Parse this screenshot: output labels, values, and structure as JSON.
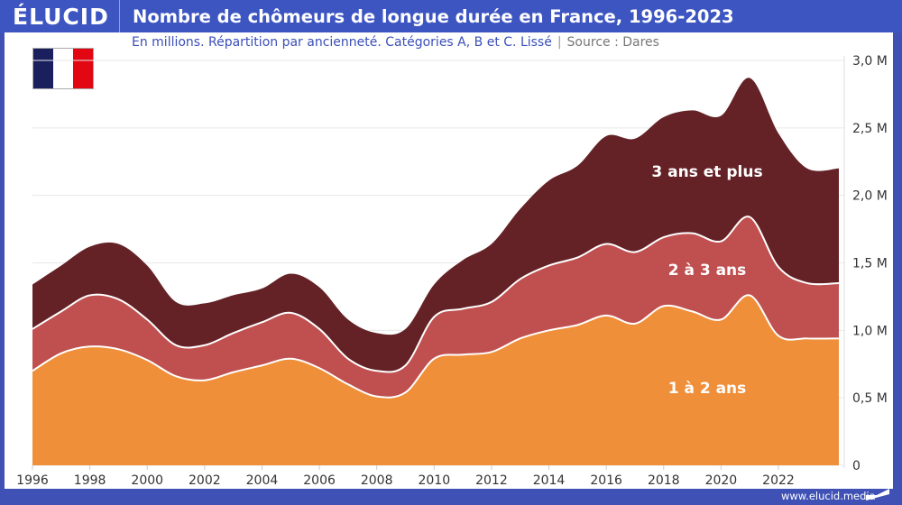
{
  "header": {
    "logo": "ÉLUCID",
    "title": "Nombre de chômeurs de longue durée en France, 1996-2023",
    "subtitle": "En millions. Répartition par ancienneté. Catégories A, B et C. Lissé",
    "separator": "|",
    "source": "Source : Dares"
  },
  "flag": {
    "name": "France",
    "colors": [
      "#1a1f5e",
      "#ffffff",
      "#e30613"
    ]
  },
  "footer": {
    "url": "www.elucid.media"
  },
  "colors": {
    "brand": "#3d55c1",
    "layer_1_2": "#ef8f3a",
    "layer_2_3": "#c05050",
    "layer_3_plus": "#642226"
  },
  "chart_data": {
    "type": "area",
    "stacked": true,
    "smoothed": true,
    "title": "Nombre de chômeurs de longue durée en France, 1996-2023",
    "subtitle": "En millions. Répartition par ancienneté. Catégories A, B et C. Lissé",
    "source": "Dares",
    "xlabel": "",
    "ylabel": "",
    "x": [
      1996,
      1997,
      1998,
      1999,
      2000,
      2001,
      2002,
      2003,
      2004,
      2005,
      2006,
      2007,
      2008,
      2009,
      2010,
      2011,
      2012,
      2013,
      2014,
      2015,
      2016,
      2017,
      2018,
      2019,
      2020,
      2021,
      2022,
      2023
    ],
    "series": [
      {
        "name": "1 à 2 ans",
        "values": [
          0.7,
          0.83,
          0.88,
          0.86,
          0.78,
          0.66,
          0.63,
          0.69,
          0.74,
          0.79,
          0.72,
          0.6,
          0.51,
          0.54,
          0.79,
          0.82,
          0.84,
          0.94,
          1.0,
          1.04,
          1.11,
          1.05,
          1.18,
          1.14,
          1.08,
          1.26,
          0.96,
          0.94
        ]
      },
      {
        "name": "2 à 3 ans",
        "values": [
          0.31,
          0.31,
          0.38,
          0.37,
          0.3,
          0.23,
          0.26,
          0.29,
          0.32,
          0.34,
          0.29,
          0.19,
          0.19,
          0.2,
          0.31,
          0.34,
          0.37,
          0.44,
          0.48,
          0.5,
          0.53,
          0.53,
          0.51,
          0.58,
          0.58,
          0.58,
          0.51,
          0.41
        ]
      },
      {
        "name": "3 ans et plus",
        "values": [
          0.33,
          0.34,
          0.36,
          0.41,
          0.4,
          0.32,
          0.31,
          0.28,
          0.25,
          0.29,
          0.31,
          0.29,
          0.28,
          0.27,
          0.24,
          0.36,
          0.43,
          0.52,
          0.63,
          0.68,
          0.8,
          0.84,
          0.89,
          0.91,
          0.93,
          1.03,
          0.99,
          0.85
        ]
      }
    ],
    "xticks": [
      "1996",
      "1998",
      "2000",
      "2002",
      "2004",
      "2006",
      "2008",
      "2010",
      "2012",
      "2014",
      "2016",
      "2018",
      "2020",
      "2022"
    ],
    "xlim": [
      1996,
      2024
    ],
    "yticks": [
      "0",
      "0,5 M",
      "1,0 M",
      "1,5 M",
      "2,0 M",
      "2,5 M",
      "3,0 M"
    ],
    "ytick_values": [
      0,
      0.5,
      1.0,
      1.5,
      2.0,
      2.5,
      3.0
    ],
    "ylim": [
      0,
      3.0
    ],
    "yaxis_side": "right",
    "grid": true,
    "legend": "inline labels on areas"
  }
}
